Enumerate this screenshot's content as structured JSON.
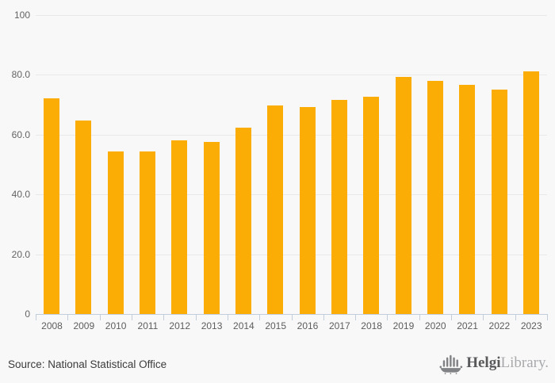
{
  "chart_data": {
    "type": "bar",
    "categories": [
      "2008",
      "2009",
      "2010",
      "2011",
      "2012",
      "2013",
      "2014",
      "2015",
      "2016",
      "2017",
      "2018",
      "2019",
      "2020",
      "2021",
      "2022",
      "2023"
    ],
    "values": [
      72.2,
      64.8,
      54.4,
      54.4,
      58.1,
      57.6,
      62.4,
      69.8,
      69.2,
      71.6,
      72.7,
      79.2,
      77.9,
      76.7,
      75.0,
      81.2
    ],
    "title": "",
    "xlabel": "",
    "ylabel": "",
    "ylim": [
      0,
      100
    ],
    "y_ticks": [
      {
        "value": 100,
        "label": "100"
      },
      {
        "value": 80,
        "label": "80.0"
      },
      {
        "value": 60,
        "label": "60.0"
      },
      {
        "value": 40,
        "label": "40.0"
      },
      {
        "value": 20,
        "label": "20.0"
      },
      {
        "value": 0,
        "label": "0"
      }
    ],
    "grid": true,
    "legend": false,
    "bar_color": "#FBAD05"
  },
  "footer": {
    "source": "Source: National Statistical Office",
    "logo": {
      "name": "Helgi",
      "suffix": "Library."
    }
  },
  "colors": {
    "background": "#f8f8f8",
    "bar": "#FBAD05",
    "gridline": "#e8e8e8",
    "axis": "#c3cedd",
    "tick_label": "#5d5d5d",
    "source_text": "#3b3b3b",
    "logo_dark": "#58595b",
    "logo_light": "#a7a9ac"
  }
}
